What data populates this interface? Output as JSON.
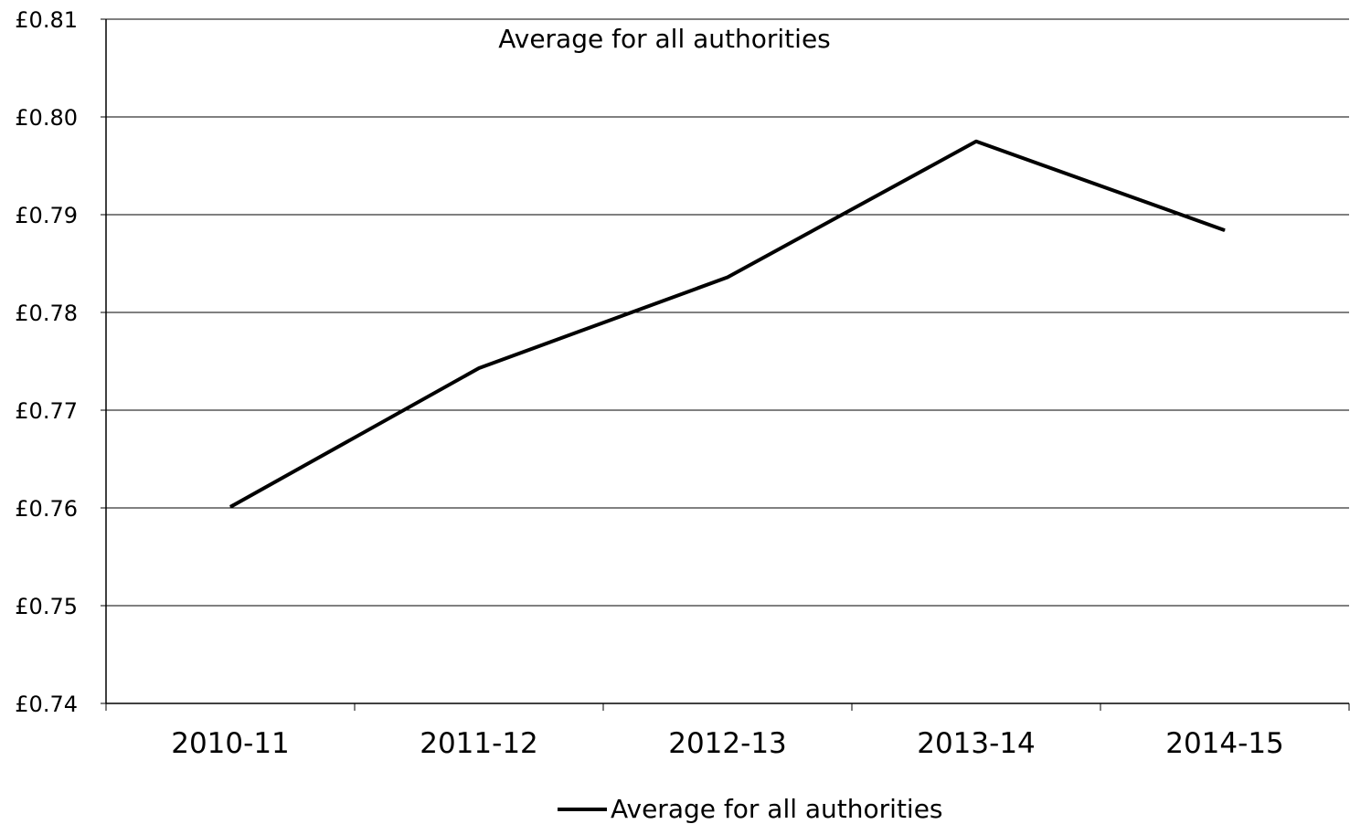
{
  "chart_data": {
    "type": "line",
    "title": "Average for all authorities",
    "xlabel": "",
    "ylabel": "",
    "categories": [
      "2010-11",
      "2011-12",
      "2012-13",
      "2013-14",
      "2014-15"
    ],
    "series": [
      {
        "name": "Average for all authorities",
        "values": [
          0.7601,
          0.7743,
          0.7836,
          0.7975,
          0.7884
        ]
      }
    ],
    "ylim": [
      0.74,
      0.81
    ],
    "yticks": [
      0.74,
      0.75,
      0.76,
      0.77,
      0.78,
      0.79,
      0.8,
      0.81
    ],
    "ytick_labels": [
      "£0.74",
      "£0.75",
      "£0.76",
      "£0.77",
      "£0.78",
      "£0.79",
      "£0.80",
      "£0.81"
    ],
    "grid": true,
    "legend": {
      "position": "bottom-center",
      "entries": [
        "Average for all authorities"
      ]
    },
    "line_color": "#000000",
    "grid_color": "#000000"
  }
}
